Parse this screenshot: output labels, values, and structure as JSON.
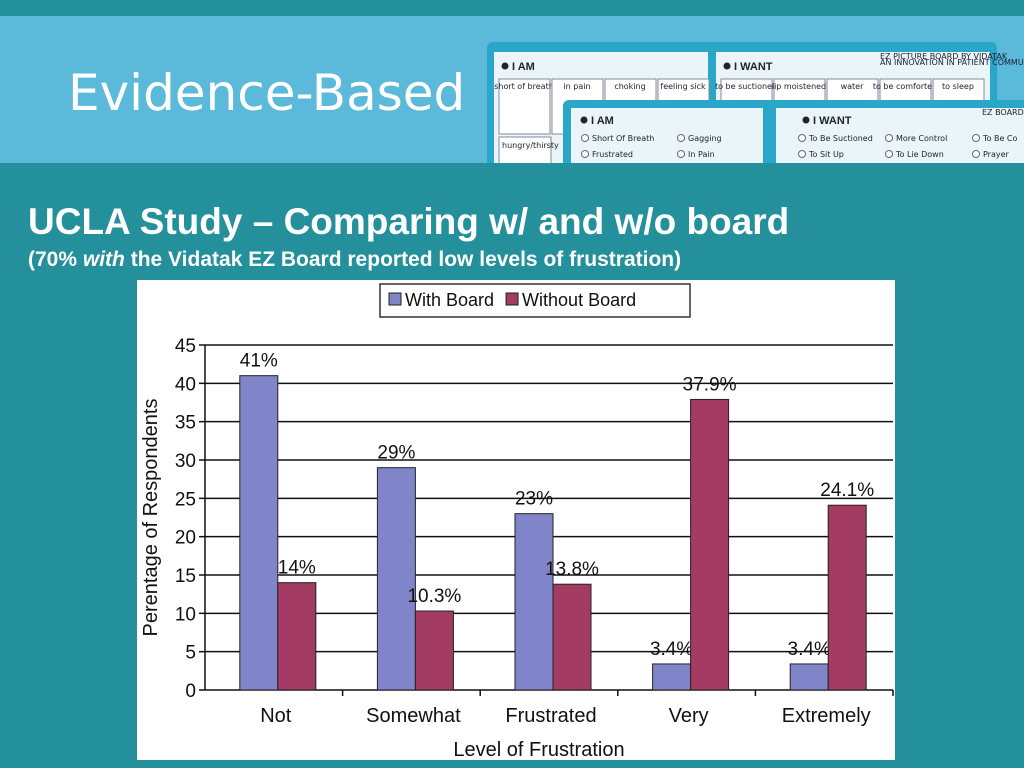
{
  "slide": {
    "heading": "Evidence-Based",
    "title": "UCLA Study – Comparing w/ and w/o board",
    "subtitle": {
      "before": "(70%",
      "emphasis": "with",
      "after": "the Vidatak EZ Board reported low levels of frustration)"
    }
  },
  "board_image": {
    "back": {
      "i_am": "I AM",
      "i_want": "I WANT",
      "brand": "EZ PICTURE BOARD BY VIDATAK",
      "tagline": "AN INNOVATION IN PATIENT COMMUNICATION",
      "cells": [
        "short of breath",
        "in pain",
        "choking",
        "feeling sick",
        "to be suctioned",
        "lip moistened",
        "water",
        "to be comforted",
        "to sleep"
      ],
      "lower_cell": "hungry/thirsty"
    },
    "front": {
      "i_am": "I AM",
      "i_want": "I WANT",
      "brand": "EZ BOARD BY VI",
      "options": [
        "Short Of Breath",
        "Gagging",
        "Frustrated",
        "In Pain",
        "To Be Suctioned",
        "More Control",
        "To Be Co",
        "To Sit Up",
        "To Lie Down",
        "Prayer"
      ]
    }
  },
  "chart_data": {
    "type": "bar",
    "categories": [
      "Not",
      "Somewhat",
      "Frustrated",
      "Very",
      "Extremely"
    ],
    "series": [
      {
        "name": "With Board",
        "color": "#8084c8",
        "values": [
          41,
          29,
          23,
          3.4,
          3.4
        ],
        "value_labels": [
          "41%",
          "29%",
          "23%",
          "3.4%",
          "3.4%"
        ]
      },
      {
        "name": "Without Board",
        "color": "#a33b63",
        "values": [
          14,
          10.3,
          13.8,
          37.9,
          24.1
        ],
        "value_labels": [
          "14%",
          "10.3%",
          "13.8%",
          "37.9%",
          "24.1%"
        ]
      }
    ],
    "y_label": "Perentage of Respondents",
    "x_label": "Level of Frustration",
    "ylim": [
      0,
      45
    ],
    "yticks": [
      0,
      5,
      10,
      15,
      20,
      25,
      30,
      35,
      40,
      45
    ],
    "grid": true,
    "legend": "top"
  }
}
